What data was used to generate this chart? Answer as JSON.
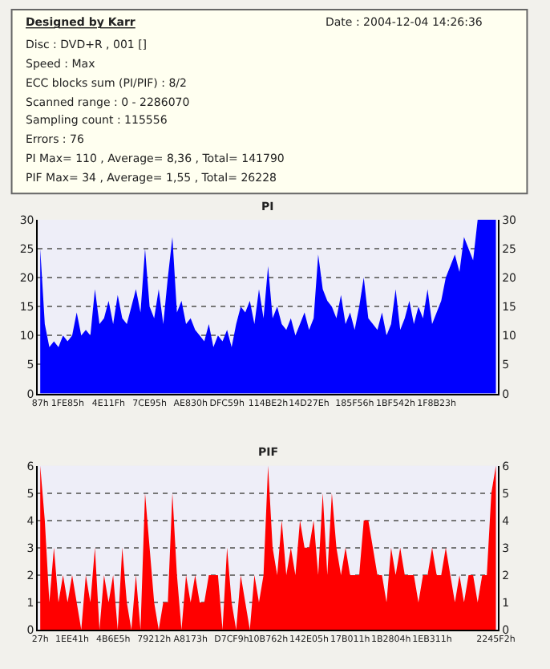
{
  "chart_data": [
    {
      "type": "other",
      "title": "Designed by Karr",
      "annotations": [
        "Date : 2004-12-04 14:26:36",
        "Disc : DVD+R , 001 []",
        "Speed : Max",
        "ECC blocks sum (PI/PIF) : 8/2",
        "Scanned range : 0 - 2286070",
        "Sampling count : 115556",
        "Errors : 76",
        "PI Max= 110 , Average= 8,36 , Total= 141790",
        "PIF Max= 34 , Average= 1,55 , Total= 26228"
      ]
    },
    {
      "type": "area",
      "title": "PI",
      "series": [
        {
          "color": "#0000ff",
          "values": [
            25,
            12,
            8,
            9,
            8,
            10,
            9,
            10,
            14,
            10,
            11,
            10,
            18,
            12,
            13,
            16,
            12,
            17,
            13,
            12,
            15,
            18,
            14,
            25,
            15,
            13,
            18,
            12,
            20,
            27,
            14,
            16,
            12,
            13,
            11,
            10,
            9,
            12,
            8,
            10,
            9,
            11,
            8,
            12,
            15,
            14,
            16,
            12,
            18,
            13,
            22,
            13,
            15,
            12,
            11,
            13,
            10,
            12,
            14,
            11,
            13,
            24,
            18,
            16,
            15,
            13,
            17,
            12,
            14,
            11,
            15,
            20,
            13,
            12,
            11,
            14,
            10,
            12,
            18,
            11,
            13,
            16,
            12,
            15,
            13,
            18,
            12,
            14,
            16,
            20,
            22,
            24,
            21,
            27,
            25,
            23,
            30,
            30,
            30,
            30,
            30
          ]
        }
      ],
      "categories": [
        "87h",
        null,
        null,
        null,
        null,
        null,
        "1FE85h",
        null,
        null,
        null,
        null,
        null,
        null,
        null,
        null,
        "4E11Fh",
        null,
        null,
        null,
        null,
        null,
        null,
        null,
        null,
        "7CE95h",
        null,
        null,
        null,
        null,
        null,
        null,
        null,
        null,
        "AE830h",
        null,
        null,
        null,
        null,
        null,
        null,
        null,
        "DFC59h",
        null,
        null,
        null,
        null,
        null,
        null,
        null,
        null,
        "114BE2h",
        null,
        null,
        null,
        null,
        null,
        null,
        null,
        null,
        "14D27Eh",
        null,
        null,
        null,
        null,
        null,
        null,
        null,
        null,
        null,
        "185F56h",
        null,
        null,
        null,
        null,
        null,
        null,
        null,
        null,
        "1BF542h",
        null,
        null,
        null,
        null,
        null,
        null,
        null,
        null,
        "1F8B23h",
        null,
        null,
        null,
        null,
        null,
        null,
        null,
        null,
        null,
        null,
        null,
        null,
        null
      ],
      "ylim": [
        0,
        30
      ],
      "yticks": [
        0,
        5,
        10,
        15,
        20,
        25,
        30
      ],
      "y2lim": [
        0,
        30
      ],
      "y2ticks": [
        0,
        5,
        10,
        15,
        20,
        25,
        30
      ],
      "grid": "y"
    },
    {
      "type": "area",
      "title": "PIF",
      "series": [
        {
          "color": "#ff0000",
          "values": [
            6,
            4,
            1,
            3,
            1,
            2,
            1,
            2,
            1,
            0,
            2,
            1,
            3,
            0,
            2,
            1,
            2,
            0,
            3,
            1,
            0,
            2,
            0,
            5,
            3,
            1,
            0,
            1,
            1,
            5,
            2,
            0,
            2,
            1,
            2,
            1,
            1,
            2,
            2,
            2,
            0,
            3,
            1,
            0,
            2,
            1,
            0,
            2,
            1,
            2,
            6,
            3,
            2,
            4,
            2,
            3,
            2,
            4,
            3,
            3,
            4,
            2,
            5,
            2,
            5,
            3,
            2,
            3,
            2,
            2,
            2,
            4,
            4,
            3,
            2,
            2,
            1,
            3,
            2,
            3,
            2,
            2,
            2,
            1,
            2,
            2,
            3,
            2,
            2,
            3,
            2,
            1,
            2,
            1,
            2,
            2,
            1,
            2,
            2,
            5,
            6
          ]
        }
      ],
      "categories": [
        "27h",
        null,
        null,
        null,
        null,
        null,
        null,
        "1EE41h",
        null,
        null,
        null,
        null,
        null,
        null,
        null,
        null,
        "4B6E5h",
        null,
        null,
        null,
        null,
        null,
        null,
        null,
        null,
        "79212h",
        null,
        null,
        null,
        null,
        null,
        null,
        null,
        "A8173h",
        null,
        null,
        null,
        null,
        null,
        null,
        null,
        null,
        "D7CF9h",
        null,
        null,
        null,
        null,
        null,
        null,
        null,
        "10B762h",
        null,
        null,
        null,
        null,
        null,
        null,
        null,
        null,
        "142E05h",
        null,
        null,
        null,
        null,
        null,
        null,
        null,
        null,
        "17B011h",
        null,
        null,
        null,
        null,
        null,
        null,
        null,
        null,
        "1B2804h",
        null,
        null,
        null,
        null,
        null,
        null,
        null,
        null,
        "1EB311h",
        null,
        null,
        null,
        null,
        null,
        null,
        null,
        null,
        null,
        null,
        null,
        null,
        null,
        "2245F2h"
      ],
      "ylim": [
        0,
        6
      ],
      "yticks": [
        0,
        1,
        2,
        3,
        4,
        5,
        6
      ],
      "y2lim": [
        0,
        6
      ],
      "y2ticks": [
        0,
        1,
        2,
        3,
        4,
        5,
        6
      ],
      "grid": "y"
    }
  ]
}
